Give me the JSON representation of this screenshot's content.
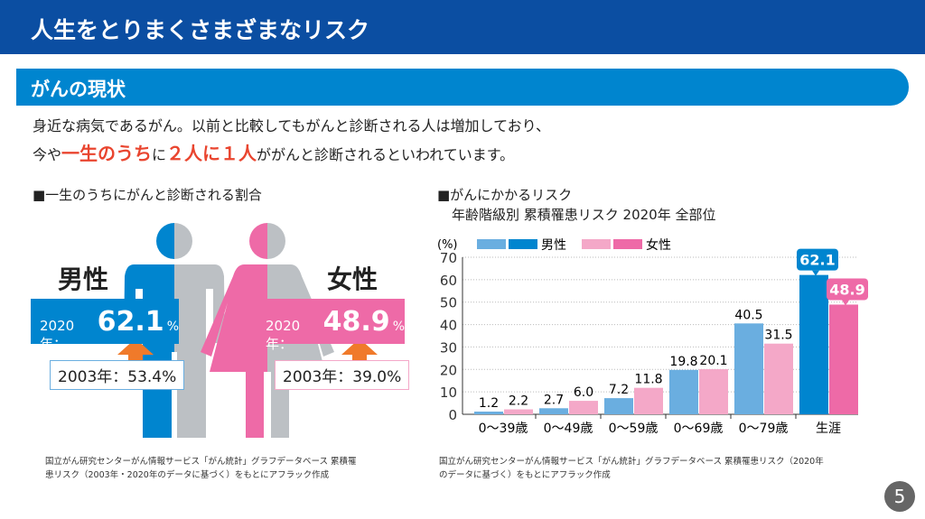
{
  "header": {
    "title": "人生をとりまくさまざまなリスク"
  },
  "section": {
    "title": "がんの現状"
  },
  "intro": {
    "line1": "身近な病気であるがん。以前と比較してもがんと診断される人は増加しており、",
    "line2_a": "今や",
    "line2_b": "一生のうち",
    "line2_c": "に",
    "line2_d": "２人に１人",
    "line2_e": "ががんと診断されるといわれています。"
  },
  "left": {
    "title": "■一生のうちにがんと診断される割合",
    "male": {
      "label": "男性",
      "year_new": "2020年：",
      "value_new": "62.1",
      "pct": "%",
      "old": "2003年：53.4%"
    },
    "female": {
      "label": "女性",
      "year_new": "2020年：",
      "value_new": "48.9",
      "pct": "%",
      "old": "2003年：39.0%"
    },
    "source": [
      "国立がん研究センターがん情報サービス「がん統計」グラフデータベース 累積罹",
      "患リスク（2003年・2020年のデータに基づく）をもとにアフラック作成"
    ]
  },
  "right": {
    "title": "■がんにかかるリスク",
    "subtitle": "年齢階級別 累積罹患リスク 2020年 全部位",
    "source": [
      "国立がん研究センターがん情報サービス「がん統計」グラフデータベース 累積罹患リスク（2020年",
      "のデータに基づく）をもとにアフラック作成"
    ]
  },
  "chart_data": {
    "type": "bar",
    "ylabel": "(%)",
    "ylim": [
      0,
      70
    ],
    "yticks": [
      0,
      10,
      20,
      30,
      40,
      50,
      60,
      70
    ],
    "grid": true,
    "legend": "top",
    "categories": [
      "0〜39歳",
      "0〜49歳",
      "0〜59歳",
      "0〜69歳",
      "0〜79歳",
      "生涯"
    ],
    "series": [
      {
        "name": "男性",
        "values": [
          1.2,
          2.7,
          7.2,
          19.8,
          40.5,
          62.1
        ],
        "color": "#6aaee0",
        "highlight_color": "#0085cf"
      },
      {
        "name": "女性",
        "values": [
          2.2,
          6.0,
          11.8,
          20.1,
          31.5,
          48.9
        ],
        "color": "#f4a8c8",
        "highlight_color": "#ee6aa7"
      }
    ],
    "labels_m": [
      "1.2",
      "2.7",
      "7.2",
      "19.8",
      "40.5",
      "62.1"
    ],
    "labels_f": [
      "2.2",
      "6.0",
      "11.8",
      "20.1",
      "31.5",
      "48.9"
    ]
  },
  "page_number": "5"
}
